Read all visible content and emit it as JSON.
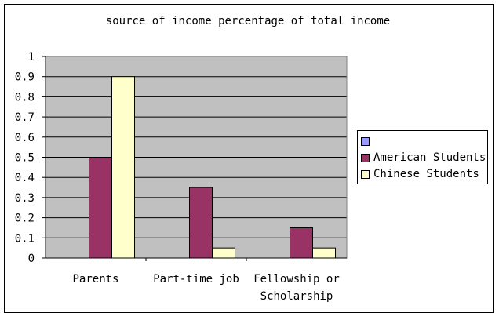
{
  "chart_data": {
    "type": "bar",
    "title": "source of income percentage of total income",
    "categories": [
      [
        "Parents"
      ],
      [
        "Part-time job"
      ],
      [
        "Fellowship or",
        "Scholarship"
      ]
    ],
    "series": [
      {
        "name": "",
        "color": "#9999ff",
        "values": [
          0,
          0,
          0
        ]
      },
      {
        "name": "American Students",
        "color": "#993366",
        "values": [
          0.5,
          0.35,
          0.15
        ]
      },
      {
        "name": "Chinese Students",
        "color": "#ffffcc",
        "values": [
          0.9,
          0.05,
          0.05
        ]
      }
    ],
    "yticks": [
      "0",
      "0.1",
      "0.2",
      "0.3",
      "0.4",
      "0.5",
      "0.6",
      "0.7",
      "0.8",
      "0.9",
      "1"
    ],
    "ylim": [
      0,
      1
    ],
    "grid": true,
    "plot_background": "#c0c0c0",
    "legend_position": "right"
  }
}
